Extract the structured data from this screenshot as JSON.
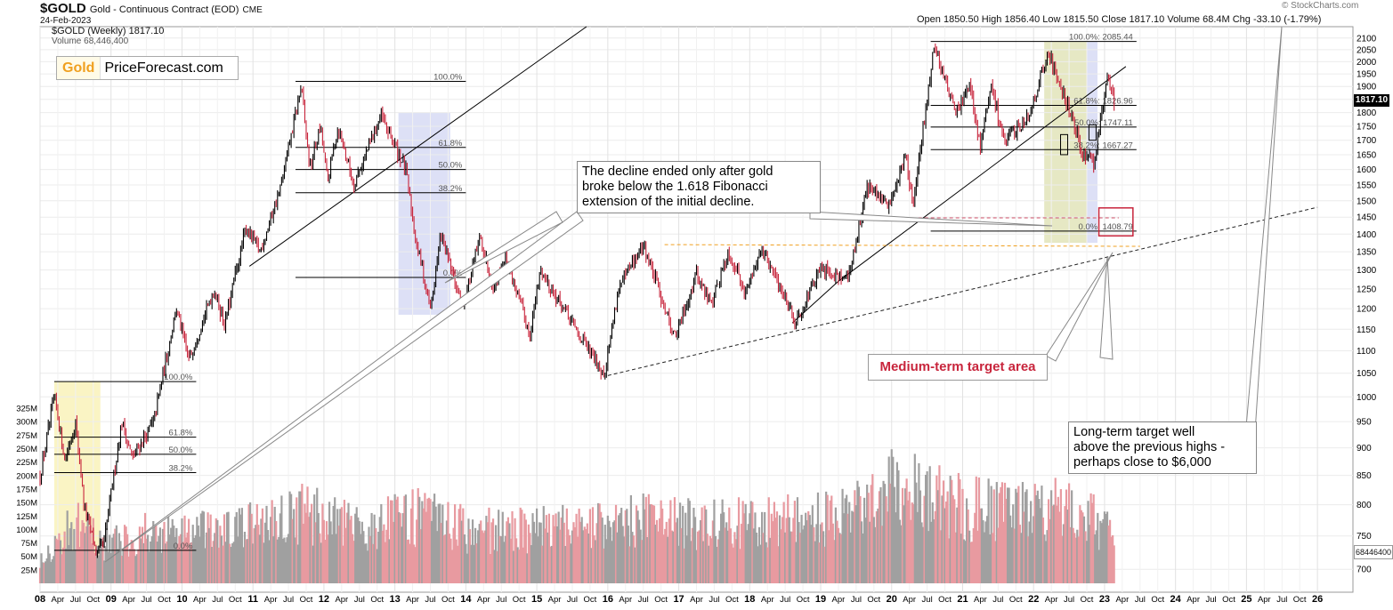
{
  "header": {
    "symbol": "$GOLD",
    "description": "Gold - Continuous Contract (EOD)",
    "exchange": "CME",
    "date": "24-Feb-2023",
    "legend_price": "$GOLD (Weekly) 1817.10",
    "legend_volume": "Volume 68,446,400",
    "ohlc": "Open 1850.50  High 1856.40  Low 1815.50  Close 1817.10  Volume 68.4M  Chg -33.10 (-1.79%)",
    "watermark": "© StockCharts.com"
  },
  "logo": {
    "gold": "Gold",
    "rest": "PriceForecast.com"
  },
  "callouts": {
    "decline": [
      "The decline ended only after gold",
      "broke below the 1.618 Fibonacci",
      "extension of the initial decline."
    ],
    "medium_target": "Medium-term target area",
    "long_target": [
      "Long-term target well",
      "above the previous highs -",
      "perhaps close to $6,000"
    ]
  },
  "badges": {
    "last_price": "1817.10",
    "last_volume": "68446400"
  },
  "colors": {
    "up": "#000000",
    "down": "#c8253c",
    "vol_up": "#a0a0a0",
    "vol_down": "#e89aa0",
    "shade_yellow": "#faf4c4",
    "shade_blue": "#dde0f6",
    "shade_green": "#e6e8c4",
    "orange_line": "#f0a020",
    "pink_line": "#d0506a"
  },
  "chart_data": {
    "type": "line",
    "title": "$GOLD Gold - Continuous Contract (EOD) CME",
    "ylabel": "",
    "y_axis": {
      "scale": "log",
      "range": [
        680,
        2150
      ],
      "ticks": [
        700,
        750,
        800,
        850,
        900,
        950,
        1000,
        1050,
        1100,
        1150,
        1200,
        1250,
        1300,
        1350,
        1400,
        1450,
        1500,
        1550,
        1600,
        1650,
        1700,
        1750,
        1800,
        1850,
        1900,
        1950,
        2000,
        2050,
        2100
      ]
    },
    "volume_axis": {
      "range": [
        0,
        340000000
      ],
      "ticks": [
        "25M",
        "50M",
        "75M",
        "100M",
        "125M",
        "150M",
        "175M",
        "200M",
        "225M",
        "250M",
        "275M",
        "300M",
        "325M"
      ]
    },
    "x_axis": {
      "range": [
        2008.0,
        2026.5
      ],
      "labels": [
        {
          "t": 2008.0,
          "text": "08",
          "bold": true
        },
        {
          "t": 2008.25,
          "text": "Apr"
        },
        {
          "t": 2008.5,
          "text": "Jul"
        },
        {
          "t": 2008.75,
          "text": "Oct"
        },
        {
          "t": 2009.0,
          "text": "09",
          "bold": true
        },
        {
          "t": 2009.25,
          "text": "Apr"
        },
        {
          "t": 2009.5,
          "text": "Jul"
        },
        {
          "t": 2009.75,
          "text": "Oct"
        },
        {
          "t": 2010.0,
          "text": "10",
          "bold": true
        },
        {
          "t": 2010.25,
          "text": "Apr"
        },
        {
          "t": 2010.5,
          "text": "Jul"
        },
        {
          "t": 2010.75,
          "text": "Oct"
        },
        {
          "t": 2011.0,
          "text": "11",
          "bold": true
        },
        {
          "t": 2011.25,
          "text": "Apr"
        },
        {
          "t": 2011.5,
          "text": "Jul"
        },
        {
          "t": 2011.75,
          "text": "Oct"
        },
        {
          "t": 2012.0,
          "text": "12",
          "bold": true
        },
        {
          "t": 2012.25,
          "text": "Apr"
        },
        {
          "t": 2012.5,
          "text": "Jul"
        },
        {
          "t": 2012.75,
          "text": "Oct"
        },
        {
          "t": 2013.0,
          "text": "13",
          "bold": true
        },
        {
          "t": 2013.25,
          "text": "Apr"
        },
        {
          "t": 2013.5,
          "text": "Jul"
        },
        {
          "t": 2013.75,
          "text": "Oct"
        },
        {
          "t": 2014.0,
          "text": "14",
          "bold": true
        },
        {
          "t": 2014.25,
          "text": "Apr"
        },
        {
          "t": 2014.5,
          "text": "Jul"
        },
        {
          "t": 2014.75,
          "text": "Oct"
        },
        {
          "t": 2015.0,
          "text": "15",
          "bold": true
        },
        {
          "t": 2015.25,
          "text": "Apr"
        },
        {
          "t": 2015.5,
          "text": "Jul"
        },
        {
          "t": 2015.75,
          "text": "Oct"
        },
        {
          "t": 2016.0,
          "text": "16",
          "bold": true
        },
        {
          "t": 2016.25,
          "text": "Apr"
        },
        {
          "t": 2016.5,
          "text": "Jul"
        },
        {
          "t": 2016.75,
          "text": "Oct"
        },
        {
          "t": 2017.0,
          "text": "17",
          "bold": true
        },
        {
          "t": 2017.25,
          "text": "Apr"
        },
        {
          "t": 2017.5,
          "text": "Jul"
        },
        {
          "t": 2017.75,
          "text": "Oct"
        },
        {
          "t": 2018.0,
          "text": "18",
          "bold": true
        },
        {
          "t": 2018.25,
          "text": "Apr"
        },
        {
          "t": 2018.5,
          "text": "Jul"
        },
        {
          "t": 2018.75,
          "text": "Oct"
        },
        {
          "t": 2019.0,
          "text": "19",
          "bold": true
        },
        {
          "t": 2019.25,
          "text": "Apr"
        },
        {
          "t": 2019.5,
          "text": "Jul"
        },
        {
          "t": 2019.75,
          "text": "Oct"
        },
        {
          "t": 2020.0,
          "text": "20",
          "bold": true
        },
        {
          "t": 2020.25,
          "text": "Apr"
        },
        {
          "t": 2020.5,
          "text": "Jul"
        },
        {
          "t": 2020.75,
          "text": "Oct"
        },
        {
          "t": 2021.0,
          "text": "21",
          "bold": true
        },
        {
          "t": 2021.25,
          "text": "Apr"
        },
        {
          "t": 2021.5,
          "text": "Jul"
        },
        {
          "t": 2021.75,
          "text": "Oct"
        },
        {
          "t": 2022.0,
          "text": "22",
          "bold": true
        },
        {
          "t": 2022.25,
          "text": "Apr"
        },
        {
          "t": 2022.5,
          "text": "Jul"
        },
        {
          "t": 2022.75,
          "text": "Oct"
        },
        {
          "t": 2023.0,
          "text": "23",
          "bold": true
        },
        {
          "t": 2023.25,
          "text": "Apr"
        },
        {
          "t": 2023.5,
          "text": "Jul"
        },
        {
          "t": 2023.75,
          "text": "Oct"
        },
        {
          "t": 2024.0,
          "text": "24",
          "bold": true
        },
        {
          "t": 2024.25,
          "text": "Apr"
        },
        {
          "t": 2024.5,
          "text": "Jul"
        },
        {
          "t": 2024.75,
          "text": "Oct"
        },
        {
          "t": 2025.0,
          "text": "25",
          "bold": true
        },
        {
          "t": 2025.25,
          "text": "Apr"
        },
        {
          "t": 2025.5,
          "text": "Jul"
        },
        {
          "t": 2025.75,
          "text": "Oct"
        },
        {
          "t": 2026.0,
          "text": "26",
          "bold": true
        }
      ]
    },
    "series": [
      {
        "name": "$GOLD (Weekly)",
        "points": [
          [
            2008.0,
            850
          ],
          [
            2008.2,
            1000
          ],
          [
            2008.35,
            880
          ],
          [
            2008.5,
            950
          ],
          [
            2008.62,
            800
          ],
          [
            2008.8,
            720
          ],
          [
            2008.9,
            740
          ],
          [
            2009.15,
            950
          ],
          [
            2009.3,
            880
          ],
          [
            2009.6,
            950
          ],
          [
            2009.92,
            1200
          ],
          [
            2010.1,
            1080
          ],
          [
            2010.45,
            1250
          ],
          [
            2010.6,
            1160
          ],
          [
            2010.9,
            1420
          ],
          [
            2011.1,
            1350
          ],
          [
            2011.4,
            1550
          ],
          [
            2011.68,
            1900
          ],
          [
            2011.8,
            1600
          ],
          [
            2011.95,
            1750
          ],
          [
            2012.05,
            1560
          ],
          [
            2012.2,
            1750
          ],
          [
            2012.42,
            1550
          ],
          [
            2012.8,
            1790
          ],
          [
            2013.0,
            1680
          ],
          [
            2013.15,
            1600
          ],
          [
            2013.3,
            1380
          ],
          [
            2013.5,
            1200
          ],
          [
            2013.65,
            1400
          ],
          [
            2013.95,
            1200
          ],
          [
            2014.2,
            1390
          ],
          [
            2014.4,
            1250
          ],
          [
            2014.55,
            1340
          ],
          [
            2014.9,
            1140
          ],
          [
            2015.05,
            1300
          ],
          [
            2015.5,
            1160
          ],
          [
            2015.95,
            1050
          ],
          [
            2016.15,
            1250
          ],
          [
            2016.5,
            1370
          ],
          [
            2016.95,
            1130
          ],
          [
            2017.25,
            1290
          ],
          [
            2017.45,
            1210
          ],
          [
            2017.7,
            1350
          ],
          [
            2017.95,
            1240
          ],
          [
            2018.15,
            1360
          ],
          [
            2018.5,
            1230
          ],
          [
            2018.65,
            1170
          ],
          [
            2019.0,
            1300
          ],
          [
            2019.4,
            1280
          ],
          [
            2019.65,
            1550
          ],
          [
            2019.95,
            1480
          ],
          [
            2020.2,
            1650
          ],
          [
            2020.3,
            1480
          ],
          [
            2020.6,
            2070
          ],
          [
            2020.9,
            1800
          ],
          [
            2021.1,
            1900
          ],
          [
            2021.25,
            1680
          ],
          [
            2021.4,
            1900
          ],
          [
            2021.6,
            1690
          ],
          [
            2021.95,
            1800
          ],
          [
            2022.2,
            2040
          ],
          [
            2022.45,
            1850
          ],
          [
            2022.7,
            1650
          ],
          [
            2022.85,
            1620
          ],
          [
            2023.05,
            1950
          ],
          [
            2023.15,
            1817
          ]
        ]
      }
    ],
    "volume_profile": [
      [
        2008.0,
        60
      ],
      [
        2008.5,
        130
      ],
      [
        2008.9,
        90
      ],
      [
        2009.5,
        110
      ],
      [
        2010.0,
        120
      ],
      [
        2010.5,
        110
      ],
      [
        2011.0,
        130
      ],
      [
        2011.7,
        160
      ],
      [
        2012.5,
        120
      ],
      [
        2013.3,
        150
      ],
      [
        2014.0,
        120
      ],
      [
        2015.0,
        120
      ],
      [
        2016.0,
        130
      ],
      [
        2016.5,
        140
      ],
      [
        2017.5,
        130
      ],
      [
        2018.5,
        140
      ],
      [
        2019.3,
        150
      ],
      [
        2019.8,
        200
      ],
      [
        2020.2,
        230
      ],
      [
        2020.6,
        190
      ],
      [
        2021.0,
        170
      ],
      [
        2021.5,
        160
      ],
      [
        2022.2,
        170
      ],
      [
        2022.9,
        140
      ],
      [
        2023.15,
        90
      ]
    ],
    "fib_levels": [
      {
        "label": "100.0%",
        "price": 1032,
        "t0": 2008.2,
        "t1": 2010.2
      },
      {
        "label": "61.8%",
        "price": 920,
        "t0": 2008.2,
        "t1": 2010.2
      },
      {
        "label": "50.0%",
        "price": 888,
        "t0": 2008.2,
        "t1": 2010.2
      },
      {
        "label": "38.2%",
        "price": 855,
        "t0": 2008.2,
        "t1": 2010.2
      },
      {
        "label": "0.0%",
        "price": 728,
        "t0": 2008.2,
        "t1": 2010.2
      },
      {
        "label": "100.0%",
        "price": 1920,
        "t0": 2011.6,
        "t1": 2014.0
      },
      {
        "label": "61.8%",
        "price": 1675,
        "t0": 2011.6,
        "t1": 2014.0
      },
      {
        "label": "50.0%",
        "price": 1600,
        "t0": 2011.6,
        "t1": 2014.0
      },
      {
        "label": "38.2%",
        "price": 1525,
        "t0": 2011.6,
        "t1": 2014.0
      },
      {
        "label": "0.0%",
        "price": 1280,
        "t0": 2011.6,
        "t1": 2014.0
      },
      {
        "label": "100.0%: 2085.44",
        "price": 2085.44,
        "t0": 2020.55,
        "t1": 2023.45
      },
      {
        "label": "61.8%: 1826.96",
        "price": 1826.96,
        "t0": 2020.55,
        "t1": 2023.45
      },
      {
        "label": "50.0%: 1747.11",
        "price": 1747.11,
        "t0": 2020.55,
        "t1": 2023.45
      },
      {
        "label": "38.2%: 1667.27",
        "price": 1667.27,
        "t0": 2020.55,
        "t1": 2023.45
      },
      {
        "label": "0.0%: 1408.79",
        "price": 1408.79,
        "t0": 2020.55,
        "t1": 2023.45
      }
    ]
  }
}
